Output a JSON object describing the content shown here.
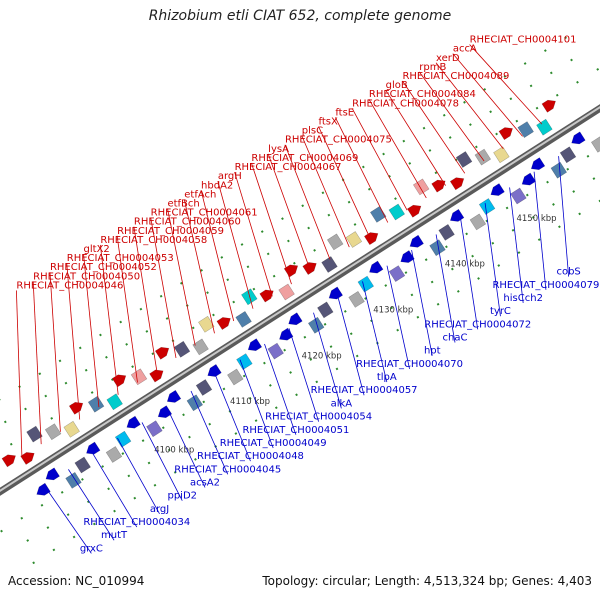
{
  "title": "Rhizobium etli CIAT 652, complete genome",
  "footer": {
    "accession": "Accession: NC_010994",
    "summary": "Topology: circular; Length: 4,513,324 bp; Genes: 4,403"
  },
  "colors": {
    "forward": "#cc0000",
    "reverse": "#0000cc",
    "backbone": "#8a8a8a",
    "dots": "#2e8b2e"
  },
  "ticks": [
    "4100 kbp",
    "4110 kbp",
    "4120 kbp",
    "4130 kbp",
    "4140 kbp",
    "4150 kbp"
  ],
  "forward_genes": [
    "RHECIAT_CH0004046",
    "RHECIAT_CH0004050",
    "RHECIAT_CH0004052",
    "RHECIAT_CH0004053",
    "gltX2",
    "RHECIAT_CH0004058",
    "RHECIAT_CH0004059",
    "RHECIAT_CH0004060",
    "RHECIAT_CH0004061",
    "etfBch",
    "etfAch",
    "hbdA2",
    "argH",
    "RHECIAT_CH0004067",
    "RHECIAT_CH0004069",
    "lysA",
    "RHECIAT_CH0004075",
    "plsC",
    "ftsX",
    "ftsE",
    "RHECIAT_CH0004078",
    "RHECIAT_CH0004084",
    "gloB",
    "RHECIAT_CH0004089",
    "rpmB",
    "xerD",
    "accA",
    "RHECIAT_CH0004101"
  ],
  "reverse_genes": [
    "grxC",
    "mutT",
    "RHECIAT_CH0004034",
    "argJ",
    "ppiD2",
    "acsA2",
    "RHECIAT_CH0004045",
    "RHECIAT_CH0004048",
    "RHECIAT_CH0004049",
    "RHECIAT_CH0004051",
    "RHECIAT_CH0004054",
    "alkA",
    "RHECIAT_CH0004057",
    "tlpA",
    "RHECIAT_CH0004070",
    "hpt",
    "chaC",
    "RHECIAT_CH0004072",
    "tyrC",
    "hisCch2",
    "RHECIAT_CH0004079",
    "cobS"
  ]
}
